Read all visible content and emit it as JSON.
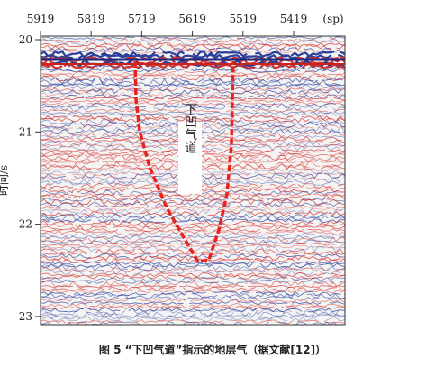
{
  "figure": {
    "x_axis": {
      "ticks": [
        5919,
        5819,
        5719,
        5619,
        5519,
        5419
      ],
      "unit": "(sp)"
    },
    "y_axis": {
      "ticks": [
        20,
        21,
        22,
        23
      ],
      "label": "时间/s"
    },
    "annotation": "下凹气道",
    "caption": "图 5 “下凹气道”指示的地层气（据文献[12]）"
  }
}
